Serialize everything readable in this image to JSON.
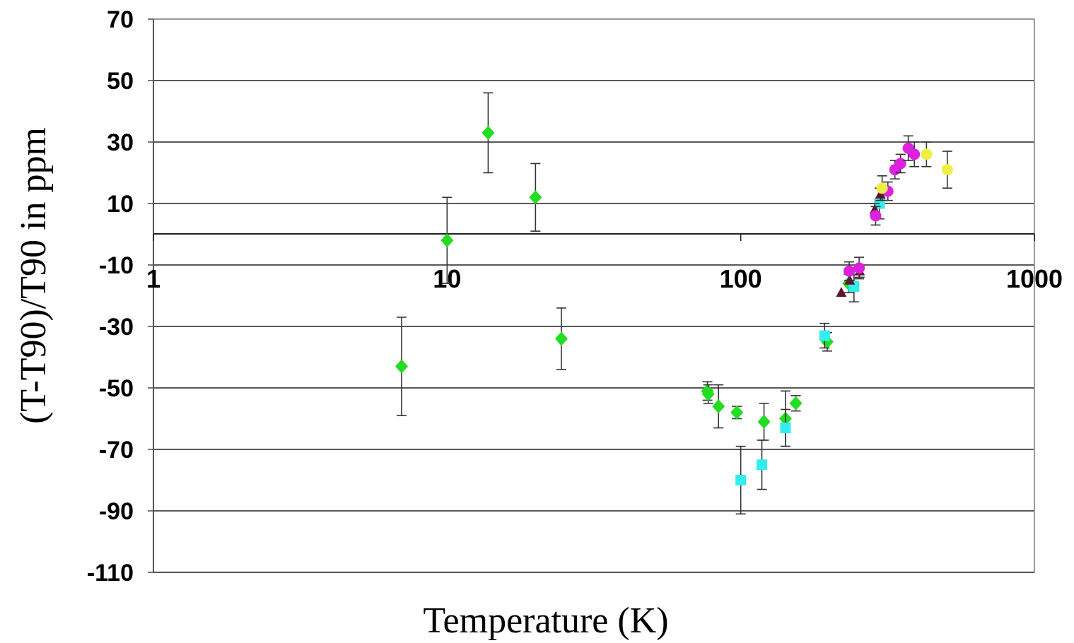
{
  "chart_data": {
    "type": "scatter",
    "title": "",
    "xlabel": "Temperature (K)",
    "ylabel": "(T-T90)/T90 in ppm",
    "x_scale": "log",
    "xlim": [
      1,
      1000
    ],
    "ylim": [
      -110,
      70
    ],
    "x_ticks": [
      "1",
      "10",
      "100",
      "1000"
    ],
    "y_ticks": [
      "70",
      "50",
      "30",
      "10",
      "-10",
      "-30",
      "-50",
      "-70",
      "-90",
      "-110"
    ],
    "grid": true,
    "legend": "none",
    "series": [
      {
        "marker": "diamond",
        "color": "#22dd22",
        "points": [
          {
            "x": 7,
            "y": -43,
            "err": 16
          },
          {
            "x": 10,
            "y": -2,
            "err": 14
          },
          {
            "x": 13.8,
            "y": 33,
            "err": 13
          },
          {
            "x": 20,
            "y": 12,
            "err": 11
          },
          {
            "x": 24.5,
            "y": -34,
            "err": 10
          },
          {
            "x": 77,
            "y": -51,
            "err": 3
          },
          {
            "x": 77.5,
            "y": -52,
            "err": 3
          },
          {
            "x": 84,
            "y": -56,
            "err": 7
          },
          {
            "x": 97,
            "y": -58,
            "err": 2
          },
          {
            "x": 120,
            "y": -61,
            "err": 6
          },
          {
            "x": 142,
            "y": -60,
            "err": 9
          },
          {
            "x": 154,
            "y": -55,
            "err": 2.5
          },
          {
            "x": 197,
            "y": -35,
            "err": 3
          },
          {
            "x": 233,
            "y": -16,
            "err": 3
          }
        ]
      },
      {
        "marker": "square",
        "color": "#33eeee",
        "points": [
          {
            "x": 100,
            "y": -80,
            "err": 11
          },
          {
            "x": 118,
            "y": -75,
            "err": 8
          },
          {
            "x": 142,
            "y": -63,
            "err": 6
          },
          {
            "x": 193,
            "y": -33,
            "err": 4
          },
          {
            "x": 243,
            "y": -17,
            "err": 5
          },
          {
            "x": 297,
            "y": 10,
            "err": 5
          }
        ]
      },
      {
        "marker": "triangle",
        "color": "#661133",
        "points": [
          {
            "x": 220,
            "y": -19,
            "err": 0
          },
          {
            "x": 235,
            "y": -15,
            "err": 0
          },
          {
            "x": 254,
            "y": -12,
            "err": 2
          },
          {
            "x": 286,
            "y": 8,
            "err": 2
          },
          {
            "x": 299,
            "y": 13,
            "err": 2
          }
        ]
      },
      {
        "marker": "circle",
        "color": "#dd22dd",
        "points": [
          {
            "x": 234,
            "y": -12,
            "err": 3
          },
          {
            "x": 253,
            "y": -11,
            "err": 3.5
          },
          {
            "x": 288,
            "y": 6,
            "err": 3
          },
          {
            "x": 317,
            "y": 14,
            "err": 3
          },
          {
            "x": 335,
            "y": 21,
            "err": 3
          },
          {
            "x": 350,
            "y": 23,
            "err": 3
          },
          {
            "x": 372,
            "y": 28,
            "err": 4
          },
          {
            "x": 390,
            "y": 26,
            "err": 4
          }
        ]
      },
      {
        "marker": "circle",
        "color": "#eeee44",
        "points": [
          {
            "x": 303,
            "y": 15,
            "err": 4
          },
          {
            "x": 429,
            "y": 26,
            "err": 4
          },
          {
            "x": 505,
            "y": 21,
            "err": 6
          }
        ]
      }
    ]
  }
}
